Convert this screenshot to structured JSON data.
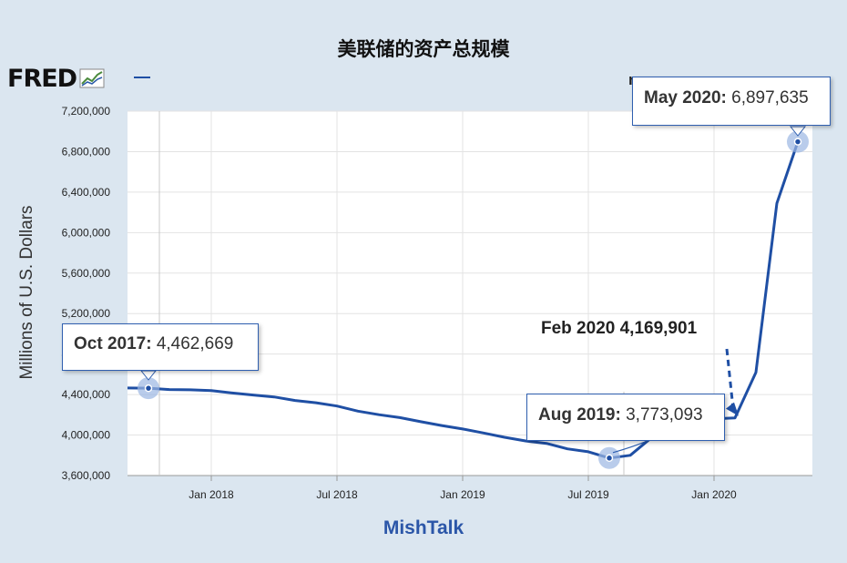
{
  "chart_data": {
    "type": "line",
    "title": "美联储的资产总规模",
    "ylabel": "Millions of U.S. Dollars",
    "xlabel": "",
    "ylim": [
      3600000,
      7200000
    ],
    "xlim": [
      "2017-09",
      "2020-05"
    ],
    "yticks": [
      3600000,
      4000000,
      4400000,
      4800000,
      5200000,
      5600000,
      6000000,
      6400000,
      6800000,
      7200000
    ],
    "ytick_labels": [
      "3,600,000",
      "4,000,000",
      "4,400,000",
      "4,800,000",
      "5,200,000",
      "5,600,000",
      "6,000,000",
      "6,400,000",
      "6,800,000",
      "7,200,000"
    ],
    "xticks": [
      "2018-01",
      "2018-07",
      "2019-01",
      "2019-07",
      "2020-01"
    ],
    "xtick_labels": [
      "Jan 2018",
      "Jul 2018",
      "Jan 2019",
      "Jul 2019",
      "Jan 2020"
    ],
    "series": [
      {
        "color": "#1f4fa4",
        "x": [
          "2017-09",
          "2017-10",
          "2017-11",
          "2017-12",
          "2018-01",
          "2018-02",
          "2018-03",
          "2018-04",
          "2018-05",
          "2018-06",
          "2018-07",
          "2018-08",
          "2018-09",
          "2018-10",
          "2018-11",
          "2018-12",
          "2019-01",
          "2019-02",
          "2019-03",
          "2019-04",
          "2019-05",
          "2019-06",
          "2019-07",
          "2019-08",
          "2019-09",
          "2019-10",
          "2019-11",
          "2019-12",
          "2020-01",
          "2020-02",
          "2020-03",
          "2020-04",
          "2020-05"
        ],
        "values": [
          4465000,
          4462669,
          4450000,
          4447000,
          4440000,
          4415000,
          4396000,
          4377000,
          4342000,
          4319000,
          4287000,
          4236000,
          4201000,
          4172000,
          4132000,
          4094000,
          4060000,
          4020000,
          3978000,
          3942000,
          3918000,
          3864000,
          3835000,
          3773093,
          3800000,
          3972000,
          4050000,
          4160000,
          4160000,
          4169901,
          4620000,
          6290000,
          6897635
        ]
      }
    ],
    "annotations": [
      {
        "date": "Oct 2017:",
        "value": "4,462,669",
        "x": "2017-10",
        "y": 4462669
      },
      {
        "date": "Aug 2019:",
        "value": "3,773,093",
        "x": "2019-08",
        "y": 3773093
      },
      {
        "date": "May 2020:",
        "value": "6,897,635",
        "x": "2020-05",
        "y": 6897635
      }
    ],
    "callout": {
      "text": "Feb 2020 4,169,901",
      "x": "2020-02",
      "y": 4169901
    },
    "grid": true,
    "legend": "none"
  },
  "branding": {
    "logo_text": "FRED",
    "watermark": "MishTalk"
  },
  "colors": {
    "background": "#dbe6f0",
    "line": "#1f4fa4",
    "grid": "#e3e3e3",
    "accent": "#2b56a8"
  }
}
